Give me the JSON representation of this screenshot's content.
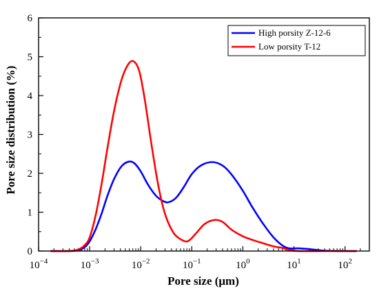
{
  "chart_data": {
    "type": "line",
    "title": "",
    "xlabel": "Pore size (μm)",
    "ylabel": "Pore size distribution (%)",
    "xscale": "log",
    "xlim": [
      0.0001,
      300
    ],
    "ylim": [
      0,
      6
    ],
    "x_ticks": [
      {
        "base": "10",
        "exp": "−4",
        "value": 0.0001
      },
      {
        "base": "10",
        "exp": "−3",
        "value": 0.001
      },
      {
        "base": "10",
        "exp": "−2",
        "value": 0.01
      },
      {
        "base": "10",
        "exp": "−1",
        "value": 0.1
      },
      {
        "base": "10",
        "exp": "0",
        "value": 1
      },
      {
        "base": "10",
        "exp": "1",
        "value": 10
      },
      {
        "base": "10",
        "exp": "2",
        "value": 100
      }
    ],
    "y_ticks": [
      "0",
      "1",
      "2",
      "3",
      "4",
      "5",
      "6"
    ],
    "grid": false,
    "legend_position": "top-right",
    "series": [
      {
        "name": "High porsity Z-12-6",
        "color": "#0000ff",
        "points": [
          [
            0.00017,
            0.0
          ],
          [
            0.0004,
            0.0
          ],
          [
            0.0006,
            0.02
          ],
          [
            0.0008,
            0.1
          ],
          [
            0.001,
            0.25
          ],
          [
            0.0013,
            0.55
          ],
          [
            0.0017,
            0.95
          ],
          [
            0.0022,
            1.4
          ],
          [
            0.003,
            1.85
          ],
          [
            0.0042,
            2.18
          ],
          [
            0.0058,
            2.3
          ],
          [
            0.0075,
            2.26
          ],
          [
            0.01,
            2.05
          ],
          [
            0.014,
            1.7
          ],
          [
            0.02,
            1.42
          ],
          [
            0.028,
            1.28
          ],
          [
            0.036,
            1.26
          ],
          [
            0.05,
            1.38
          ],
          [
            0.07,
            1.65
          ],
          [
            0.1,
            1.98
          ],
          [
            0.15,
            2.2
          ],
          [
            0.25,
            2.29
          ],
          [
            0.4,
            2.2
          ],
          [
            0.6,
            1.97
          ],
          [
            1.0,
            1.55
          ],
          [
            1.5,
            1.15
          ],
          [
            2.5,
            0.7
          ],
          [
            4.0,
            0.35
          ],
          [
            6.0,
            0.14
          ],
          [
            8.0,
            0.07
          ],
          [
            12,
            0.07
          ],
          [
            20,
            0.05
          ],
          [
            40,
            0.01
          ],
          [
            100,
            0.0
          ],
          [
            170,
            0.0
          ]
        ]
      },
      {
        "name": "Low porsity T-12",
        "color": "#ff0000",
        "points": [
          [
            0.00017,
            0.0
          ],
          [
            0.0004,
            0.0
          ],
          [
            0.0006,
            0.04
          ],
          [
            0.0008,
            0.15
          ],
          [
            0.001,
            0.35
          ],
          [
            0.0013,
            0.9
          ],
          [
            0.0017,
            1.7
          ],
          [
            0.0022,
            2.6
          ],
          [
            0.003,
            3.6
          ],
          [
            0.0042,
            4.4
          ],
          [
            0.0058,
            4.82
          ],
          [
            0.0075,
            4.87
          ],
          [
            0.0095,
            4.6
          ],
          [
            0.012,
            3.9
          ],
          [
            0.016,
            2.8
          ],
          [
            0.022,
            1.7
          ],
          [
            0.03,
            0.95
          ],
          [
            0.045,
            0.45
          ],
          [
            0.07,
            0.26
          ],
          [
            0.09,
            0.28
          ],
          [
            0.12,
            0.45
          ],
          [
            0.18,
            0.7
          ],
          [
            0.28,
            0.8
          ],
          [
            0.4,
            0.75
          ],
          [
            0.6,
            0.55
          ],
          [
            1.0,
            0.38
          ],
          [
            1.6,
            0.28
          ],
          [
            2.5,
            0.2
          ],
          [
            4.0,
            0.12
          ],
          [
            6.0,
            0.08
          ],
          [
            8.0,
            0.03
          ],
          [
            12,
            0.0
          ],
          [
            40,
            0.0
          ],
          [
            100,
            0.0
          ],
          [
            170,
            0.0
          ]
        ]
      }
    ]
  }
}
